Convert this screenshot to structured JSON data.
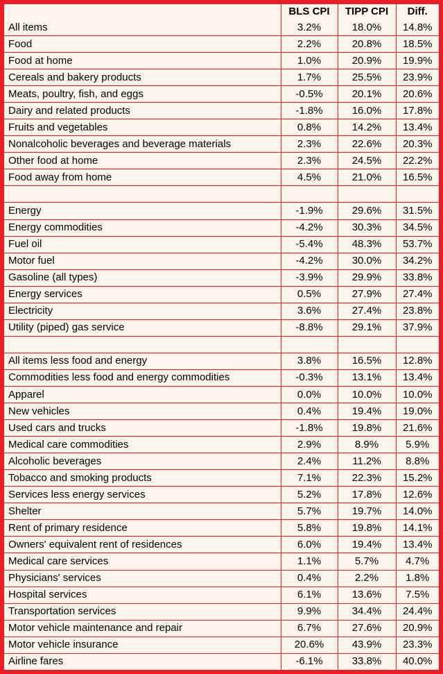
{
  "colors": {
    "frame_border": "#EC1C24",
    "grid_line": "#DD1E1E",
    "row_background": "#FDF4EB",
    "text": "#000000"
  },
  "chart_data": {
    "type": "table",
    "title": "",
    "columns": [
      "",
      "BLS CPI",
      "TIPP CPI",
      "Diff."
    ],
    "rows": [
      [
        "All items",
        "3.2%",
        "18.0%",
        "14.8%"
      ],
      [
        "Food",
        "2.2%",
        "20.8%",
        "18.5%"
      ],
      [
        "Food at home",
        "1.0%",
        "20.9%",
        "19.9%"
      ],
      [
        "Cereals and bakery products",
        "1.7%",
        "25.5%",
        "23.9%"
      ],
      [
        "Meats, poultry, fish, and eggs",
        "-0.5%",
        "20.1%",
        "20.6%"
      ],
      [
        "Dairy and related products",
        "-1.8%",
        "16.0%",
        "17.8%"
      ],
      [
        "Fruits and vegetables",
        "0.8%",
        "14.2%",
        "13.4%"
      ],
      [
        "Nonalcoholic beverages and beverage materials",
        "2.3%",
        "22.6%",
        "20.3%"
      ],
      [
        "Other food at home",
        "2.3%",
        "24.5%",
        "22.2%"
      ],
      [
        "Food away from home",
        "4.5%",
        "21.0%",
        "16.5%"
      ],
      [
        "",
        "",
        "",
        ""
      ],
      [
        "Energy",
        "-1.9%",
        "29.6%",
        "31.5%"
      ],
      [
        "Energy commodities",
        "-4.2%",
        "30.3%",
        "34.5%"
      ],
      [
        "Fuel oil",
        "-5.4%",
        "48.3%",
        "53.7%"
      ],
      [
        "Motor fuel",
        "-4.2%",
        "30.0%",
        "34.2%"
      ],
      [
        "Gasoline (all types)",
        "-3.9%",
        "29.9%",
        "33.8%"
      ],
      [
        "Energy services",
        "0.5%",
        "27.9%",
        "27.4%"
      ],
      [
        "Electricity",
        "3.6%",
        "27.4%",
        "23.8%"
      ],
      [
        "Utility (piped) gas service",
        "-8.8%",
        "29.1%",
        "37.9%"
      ],
      [
        "",
        "",
        "",
        ""
      ],
      [
        "All items less food and energy",
        "3.8%",
        "16.5%",
        "12.8%"
      ],
      [
        "Commodities less food and energy commodities",
        "-0.3%",
        "13.1%",
        "13.4%"
      ],
      [
        "Apparel",
        "0.0%",
        "10.0%",
        "10.0%"
      ],
      [
        "New vehicles",
        "0.4%",
        "19.4%",
        "19.0%"
      ],
      [
        "Used cars and trucks",
        "-1.8%",
        "19.8%",
        "21.6%"
      ],
      [
        "Medical care commodities",
        "2.9%",
        "8.9%",
        "5.9%"
      ],
      [
        "Alcoholic beverages",
        "2.4%",
        "11.2%",
        "8.8%"
      ],
      [
        "Tobacco and smoking products",
        "7.1%",
        "22.3%",
        "15.2%"
      ],
      [
        "Services less energy services",
        "5.2%",
        "17.8%",
        "12.6%"
      ],
      [
        "Shelter",
        "5.7%",
        "19.7%",
        "14.0%"
      ],
      [
        "Rent of primary residence",
        "5.8%",
        "19.8%",
        "14.1%"
      ],
      [
        "Owners' equivalent rent of residences",
        "6.0%",
        "19.4%",
        "13.4%"
      ],
      [
        "Medical care services",
        "1.1%",
        "5.7%",
        "4.7%"
      ],
      [
        "Physicians' services",
        "0.4%",
        "2.2%",
        "1.8%"
      ],
      [
        "Hospital services",
        "6.1%",
        "13.6%",
        "7.5%"
      ],
      [
        "Transportation services",
        "9.9%",
        "34.4%",
        "24.4%"
      ],
      [
        "Motor vehicle maintenance and repair",
        "6.7%",
        "27.6%",
        "20.9%"
      ],
      [
        "Motor vehicle insurance",
        "20.6%",
        "43.9%",
        "23.3%"
      ],
      [
        "Airline fares",
        "-6.1%",
        "33.8%",
        "40.0%"
      ]
    ]
  }
}
